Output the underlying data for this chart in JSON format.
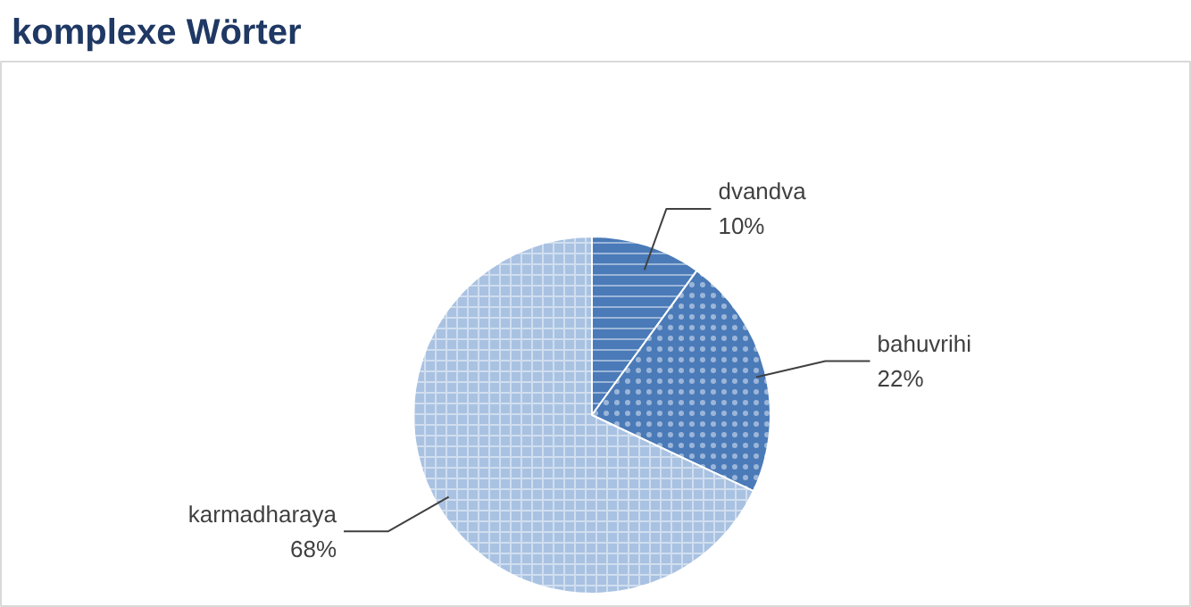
{
  "chart_data": {
    "type": "pie",
    "title": "komplexe Wörter",
    "categories": [
      "dvandva",
      "bahuvrihi",
      "karmadharaya"
    ],
    "values": [
      10,
      22,
      68
    ],
    "value_labels": [
      "10%",
      "22%",
      "68%"
    ],
    "colors": [
      "#4a7ab8",
      "#4a7ab8",
      "#a9c2e2"
    ]
  }
}
